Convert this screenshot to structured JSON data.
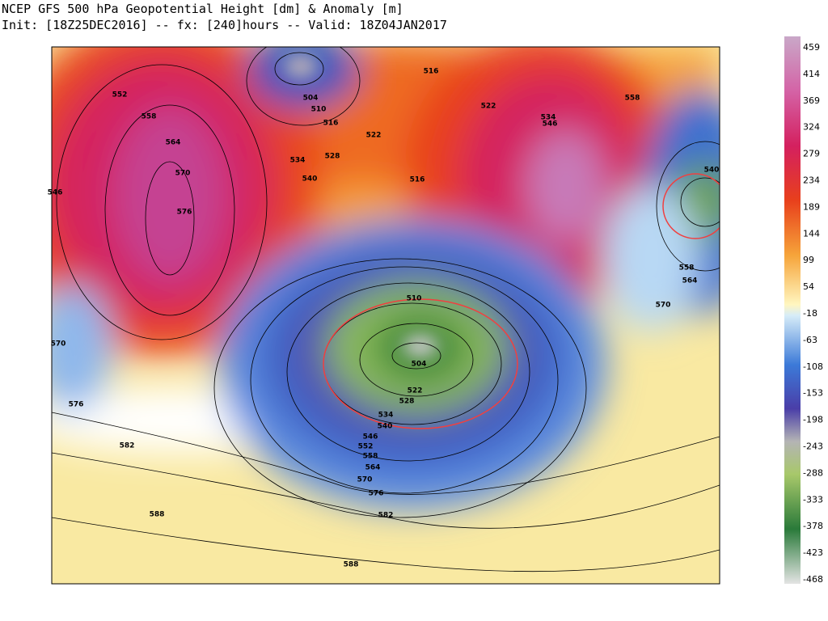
{
  "header": {
    "line1": "NCEP GFS 500 hPa Geopotential Height [dm] & Anomaly [m]",
    "line2": "Init: [18Z25DEC2016] -- fx: [240]hours -- Valid: 18Z04JAN2017"
  },
  "colorbar": {
    "labels": [
      "459",
      "414",
      "369",
      "324",
      "279",
      "234",
      "189",
      "144",
      "99",
      "54",
      "-18",
      "-63",
      "-108",
      "-153",
      "-198",
      "-243",
      "-288",
      "-333",
      "-378",
      "-423",
      "-468"
    ]
  },
  "map": {
    "contour_labels": [
      "516",
      "504",
      "510",
      "516",
      "522",
      "528",
      "534",
      "540",
      "516",
      "552",
      "558",
      "564",
      "570",
      "576",
      "546",
      "570",
      "576",
      "582",
      "588",
      "588",
      "582",
      "576",
      "570",
      "564",
      "558",
      "552",
      "546",
      "540",
      "534",
      "528",
      "522",
      "504",
      "510",
      "522",
      "534",
      "546",
      "558",
      "540",
      "558",
      "564",
      "570"
    ]
  }
}
